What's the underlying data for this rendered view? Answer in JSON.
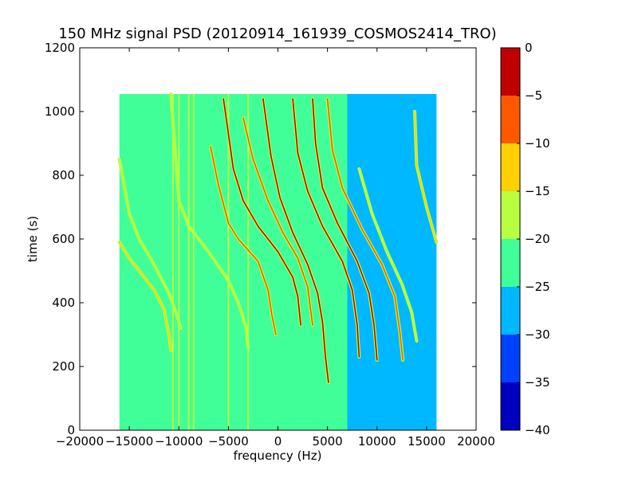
{
  "chart_data": {
    "type": "heatmap",
    "title": "150 MHz signal PSD (20120914_161939_COSMOS2414_TRO)",
    "xlabel": "frequency (Hz)",
    "ylabel": "time (s)",
    "xlim": [
      -20000,
      20000
    ],
    "ylim": [
      0,
      1200
    ],
    "xticks": [
      "−20000",
      "−15000",
      "−10000",
      "−5000",
      "0",
      "5000",
      "10000",
      "15000",
      "20000"
    ],
    "xtick_values": [
      -20000,
      -15000,
      -10000,
      -5000,
      0,
      5000,
      10000,
      15000,
      20000
    ],
    "yticks": [
      "0",
      "200",
      "400",
      "600",
      "800",
      "1000",
      "1200"
    ],
    "ytick_values": [
      0,
      200,
      400,
      600,
      800,
      1000,
      1200
    ],
    "data_extent": {
      "x": [
        -16000,
        16000
      ],
      "y": [
        0,
        1055
      ]
    },
    "background_level_dB": -22.5,
    "low_noise_region": {
      "x": [
        7000,
        16000
      ],
      "level_dB": -27.5
    },
    "vertical_lines": [
      {
        "x": -10600,
        "level_dB": -17.5
      },
      {
        "x": -10000,
        "level_dB": -17.5
      },
      {
        "x": -9000,
        "level_dB": -17.5
      },
      {
        "x": -8500,
        "level_dB": -17.5
      },
      {
        "x": -5000,
        "level_dB": -17.5
      },
      {
        "x": -3000,
        "level_dB": -17.5
      }
    ],
    "doppler_traces": [
      {
        "x_at_t": [
          [
            -16000,
            850
          ],
          [
            -15000,
            680
          ],
          [
            -14000,
            600
          ],
          [
            -12500,
            520
          ],
          [
            -11000,
            430
          ],
          [
            -10200,
            360
          ],
          [
            -9800,
            320
          ]
        ],
        "peak_dB": -17.5
      },
      {
        "x_at_t": [
          [
            -16000,
            590
          ],
          [
            -15000,
            540
          ],
          [
            -14000,
            500
          ],
          [
            -12500,
            440
          ],
          [
            -11500,
            380
          ],
          [
            -11000,
            300
          ],
          [
            -10800,
            250
          ]
        ],
        "peak_dB": -12.5
      },
      {
        "x_at_t": [
          [
            -10800,
            1055
          ],
          [
            -10000,
            720
          ],
          [
            -9000,
            640
          ],
          [
            -7000,
            560
          ],
          [
            -5000,
            470
          ],
          [
            -4000,
            400
          ],
          [
            -3200,
            320
          ],
          [
            -3000,
            260
          ]
        ],
        "peak_dB": -17.5
      },
      {
        "x_at_t": [
          [
            -6800,
            890
          ],
          [
            -6000,
            770
          ],
          [
            -5000,
            650
          ],
          [
            -4000,
            600
          ],
          [
            -2000,
            530
          ],
          [
            -1000,
            440
          ],
          [
            -600,
            360
          ],
          [
            -200,
            300
          ]
        ],
        "peak_dB": -7.5
      },
      {
        "x_at_t": [
          [
            -5500,
            1040
          ],
          [
            -4500,
            820
          ],
          [
            -3500,
            720
          ],
          [
            -2000,
            640
          ],
          [
            0,
            560
          ],
          [
            1500,
            480
          ],
          [
            2000,
            420
          ],
          [
            2300,
            330
          ]
        ],
        "peak_dB": -2.5
      },
      {
        "x_at_t": [
          [
            -3500,
            980
          ],
          [
            -2500,
            850
          ],
          [
            -1000,
            720
          ],
          [
            500,
            620
          ],
          [
            2000,
            540
          ],
          [
            3000,
            450
          ],
          [
            3500,
            330
          ]
        ],
        "peak_dB": -7.5
      },
      {
        "x_at_t": [
          [
            -1500,
            1040
          ],
          [
            -700,
            860
          ],
          [
            200,
            730
          ],
          [
            1500,
            620
          ],
          [
            3000,
            520
          ],
          [
            4000,
            430
          ],
          [
            4500,
            340
          ],
          [
            4800,
            230
          ],
          [
            5100,
            150
          ]
        ],
        "peak_dB": -2.5
      },
      {
        "x_at_t": [
          [
            1500,
            1040
          ],
          [
            2000,
            870
          ],
          [
            3000,
            750
          ],
          [
            4500,
            640
          ],
          [
            6500,
            530
          ],
          [
            7500,
            440
          ],
          [
            8000,
            330
          ],
          [
            8200,
            230
          ]
        ],
        "peak_dB": -2.5
      },
      {
        "x_at_t": [
          [
            3500,
            1040
          ],
          [
            3800,
            900
          ],
          [
            4500,
            760
          ],
          [
            6000,
            650
          ],
          [
            8000,
            530
          ],
          [
            9200,
            430
          ],
          [
            9700,
            330
          ],
          [
            10000,
            220
          ]
        ],
        "peak_dB": -2.5
      },
      {
        "x_at_t": [
          [
            5000,
            1040
          ],
          [
            5500,
            880
          ],
          [
            6500,
            760
          ],
          [
            8500,
            630
          ],
          [
            10500,
            520
          ],
          [
            11800,
            420
          ],
          [
            12300,
            310
          ],
          [
            12600,
            220
          ]
        ],
        "peak_dB": -7.5
      },
      {
        "x_at_t": [
          [
            8200,
            820
          ],
          [
            9500,
            680
          ],
          [
            11000,
            560
          ],
          [
            12500,
            460
          ],
          [
            13500,
            370
          ],
          [
            14000,
            280
          ]
        ],
        "peak_dB": -17.5
      },
      {
        "x_at_t": [
          [
            13800,
            1000
          ],
          [
            14000,
            830
          ],
          [
            15000,
            700
          ],
          [
            16000,
            590
          ]
        ],
        "peak_dB": -12.5
      }
    ],
    "colorbar": {
      "min": -40,
      "max": 0,
      "ticks": [
        "−40",
        "−35",
        "−30",
        "−25",
        "−20",
        "−15",
        "−10",
        "−5",
        "0"
      ],
      "tick_values": [
        -40,
        -35,
        -30,
        -25,
        -20,
        -15,
        -10,
        -5,
        0
      ],
      "levels": [
        {
          "from": -40,
          "to": -35,
          "color": "#0000c0"
        },
        {
          "from": -35,
          "to": -30,
          "color": "#0040ff"
        },
        {
          "from": -30,
          "to": -25,
          "color": "#00b8ff"
        },
        {
          "from": -25,
          "to": -20,
          "color": "#40ff98"
        },
        {
          "from": -20,
          "to": -15,
          "color": "#b8ff40"
        },
        {
          "from": -15,
          "to": -10,
          "color": "#ffd000"
        },
        {
          "from": -10,
          "to": -5,
          "color": "#ff5800"
        },
        {
          "from": -5,
          "to": 0,
          "color": "#c00000"
        }
      ]
    }
  }
}
